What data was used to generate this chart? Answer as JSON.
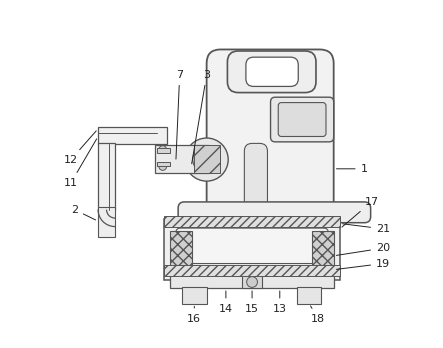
{
  "bg_color": "#ffffff",
  "line_color": "#555555",
  "figsize": [
    4.43,
    3.48
  ],
  "dpi": 100
}
